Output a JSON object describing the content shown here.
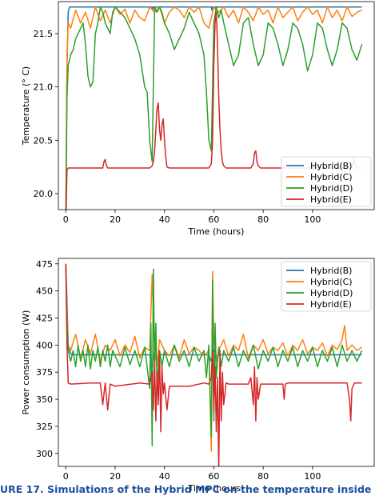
{
  "caption": "URE 17.  Simulations of the Hybrid MPC on the temperature inside",
  "chart_data": [
    {
      "type": "line",
      "title": "",
      "xlabel": "Time (hours)",
      "ylabel": "Temperature (° C)",
      "xlim": [
        -3,
        125
      ],
      "ylim": [
        19.85,
        21.8
      ],
      "xticks": [
        0,
        20,
        40,
        60,
        80,
        100
      ],
      "yticks": [
        20.0,
        20.5,
        21.0,
        21.5
      ],
      "ytick_labels": [
        "20.0",
        "20.5",
        "21.0",
        "21.5"
      ],
      "grid": false,
      "legend": "bottom-right",
      "series": [
        {
          "name": "Hybrid(B)",
          "color": "#1f77b4",
          "x": [
            0,
            0.5,
            1,
            1.5,
            35,
            35.2,
            35.5,
            35.8,
            59,
            59.2,
            59.5,
            59.8,
            120
          ],
          "y": [
            19.7,
            21.2,
            21.7,
            21.75,
            21.75,
            21.72,
            21.75,
            21.75,
            21.75,
            21.72,
            21.75,
            21.75,
            21.75
          ]
        },
        {
          "name": "Hybrid(C)",
          "color": "#ff7f0e",
          "x": [
            0,
            0.5,
            1,
            2,
            4,
            6,
            8,
            10,
            12,
            14,
            16,
            18,
            20,
            22,
            24,
            26,
            28,
            30,
            32,
            34,
            36,
            38,
            40,
            42,
            44,
            46,
            48,
            50,
            52,
            54,
            56,
            58,
            60,
            62,
            64,
            66,
            68,
            70,
            72,
            74,
            76,
            78,
            80,
            82,
            84,
            86,
            88,
            90,
            92,
            94,
            96,
            98,
            100,
            102,
            104,
            106,
            108,
            110,
            112,
            114,
            116,
            118,
            120
          ],
          "y": [
            19.7,
            21.3,
            21.6,
            21.55,
            21.72,
            21.6,
            21.7,
            21.55,
            21.75,
            21.62,
            21.72,
            21.6,
            21.75,
            21.68,
            21.73,
            21.6,
            21.72,
            21.65,
            21.62,
            21.75,
            21.7,
            21.75,
            21.6,
            21.7,
            21.75,
            21.72,
            21.65,
            21.75,
            21.7,
            21.75,
            21.6,
            21.55,
            21.75,
            21.7,
            21.75,
            21.65,
            21.72,
            21.6,
            21.75,
            21.7,
            21.62,
            21.75,
            21.68,
            21.72,
            21.6,
            21.75,
            21.65,
            21.7,
            21.75,
            21.62,
            21.7,
            21.75,
            21.68,
            21.72,
            21.6,
            21.75,
            21.65,
            21.72,
            21.62,
            21.75,
            21.66,
            21.7,
            21.72
          ]
        },
        {
          "name": "Hybrid(D)",
          "color": "#2ca02c",
          "x": [
            0,
            0.5,
            1,
            2,
            3,
            4,
            5,
            6,
            7,
            8,
            9,
            10,
            11,
            12,
            13,
            14,
            15,
            16,
            17,
            18,
            19,
            20,
            22,
            24,
            26,
            28,
            30,
            32,
            33,
            34,
            35,
            36,
            37,
            38,
            39,
            40,
            42,
            44,
            46,
            48,
            50,
            52,
            54,
            56,
            57,
            58,
            59,
            60,
            61,
            62,
            63,
            64,
            66,
            68,
            70,
            72,
            74,
            76,
            78,
            80,
            82,
            84,
            86,
            88,
            90,
            92,
            94,
            96,
            98,
            100,
            102,
            104,
            106,
            108,
            110,
            112,
            114,
            116,
            118,
            120
          ],
          "y": [
            19.7,
            20.9,
            21.2,
            21.3,
            21.35,
            21.45,
            21.5,
            21.55,
            21.6,
            21.4,
            21.1,
            21.0,
            21.05,
            21.5,
            21.6,
            21.75,
            21.7,
            21.6,
            21.55,
            21.5,
            21.7,
            21.75,
            21.7,
            21.65,
            21.55,
            21.45,
            21.3,
            21.0,
            20.95,
            20.5,
            20.3,
            21.75,
            21.7,
            21.75,
            21.7,
            21.6,
            21.5,
            21.35,
            21.45,
            21.55,
            21.7,
            21.6,
            21.5,
            21.3,
            20.95,
            20.5,
            20.4,
            21.6,
            21.75,
            21.65,
            21.72,
            21.6,
            21.4,
            21.2,
            21.3,
            21.6,
            21.65,
            21.4,
            21.2,
            21.3,
            21.6,
            21.55,
            21.4,
            21.2,
            21.35,
            21.6,
            21.55,
            21.4,
            21.15,
            21.3,
            21.6,
            21.55,
            21.35,
            21.2,
            21.35,
            21.6,
            21.55,
            21.35,
            21.25,
            21.4
          ]
        },
        {
          "name": "Hybrid(E)",
          "color": "#d62728",
          "x": [
            0,
            0.5,
            1,
            15,
            15.5,
            16,
            16.5,
            17,
            34,
            35,
            35.5,
            36,
            36.5,
            37,
            37.5,
            38,
            38.5,
            39,
            39.5,
            40,
            40.5,
            41,
            42,
            58,
            59,
            59.5,
            60,
            60.5,
            61,
            61.5,
            62,
            62.5,
            63,
            63.5,
            64,
            65,
            75,
            76,
            76.5,
            77,
            77.5,
            78,
            79,
            88,
            88.5,
            89,
            116,
            116.5,
            117,
            117.5,
            118,
            120
          ],
          "y": [
            19.7,
            20.22,
            20.24,
            20.24,
            20.3,
            20.32,
            20.26,
            20.24,
            20.24,
            20.26,
            20.3,
            20.4,
            20.6,
            20.8,
            20.85,
            20.6,
            20.5,
            20.65,
            20.7,
            20.5,
            20.35,
            20.25,
            20.24,
            20.24,
            20.28,
            20.5,
            21.2,
            21.6,
            21.7,
            21.4,
            20.9,
            20.6,
            20.4,
            20.3,
            20.26,
            20.24,
            20.24,
            20.28,
            20.38,
            20.4,
            20.3,
            20.26,
            20.24,
            20.24,
            20.25,
            20.24,
            20.24,
            20.33,
            20.3,
            20.26,
            20.24,
            20.24
          ]
        }
      ]
    },
    {
      "type": "line",
      "title": "",
      "xlabel": "Time (hours)",
      "ylabel": "Power consumption (W)",
      "xlim": [
        -3,
        125
      ],
      "ylim": [
        288,
        480
      ],
      "xticks": [
        0,
        20,
        40,
        60,
        80,
        100
      ],
      "yticks": [
        300,
        325,
        350,
        375,
        400,
        425,
        450,
        475
      ],
      "ytick_labels": [
        "300",
        "325",
        "350",
        "375",
        "400",
        "425",
        "450",
        "475"
      ],
      "grid": false,
      "legend": "top-right",
      "series": [
        {
          "name": "Hybrid(B)",
          "color": "#1f77b4",
          "x": [
            0,
            0.5,
            1,
            2,
            3,
            34,
            35,
            36,
            37,
            38,
            58,
            59,
            60,
            61,
            62,
            120
          ],
          "y": [
            475,
            440,
            400,
            392,
            391,
            391,
            380,
            395,
            388,
            391,
            391,
            385,
            396,
            389,
            391,
            391
          ]
        },
        {
          "name": "Hybrid(C)",
          "color": "#ff7f0e",
          "x": [
            0,
            0.5,
            1,
            2,
            4,
            6,
            8,
            10,
            12,
            14,
            16,
            18,
            20,
            22,
            24,
            26,
            28,
            30,
            32,
            34,
            35,
            36,
            37,
            38,
            40,
            42,
            44,
            46,
            48,
            50,
            52,
            54,
            56,
            58,
            59,
            59.5,
            60,
            60.5,
            61,
            62,
            64,
            66,
            68,
            70,
            72,
            74,
            76,
            78,
            80,
            82,
            84,
            86,
            88,
            90,
            92,
            94,
            96,
            98,
            100,
            102,
            104,
            106,
            108,
            110,
            112,
            113,
            114,
            116,
            118,
            120
          ],
          "y": [
            475,
            430,
            400,
            395,
            410,
            388,
            405,
            392,
            410,
            385,
            400,
            395,
            405,
            390,
            400,
            393,
            408,
            388,
            398,
            395,
            465,
            400,
            380,
            405,
            395,
            390,
            400,
            388,
            405,
            392,
            398,
            395,
            390,
            395,
            302,
            468,
            400,
            410,
            385,
            395,
            405,
            390,
            400,
            395,
            410,
            388,
            400,
            395,
            405,
            392,
            398,
            395,
            402,
            390,
            400,
            395,
            405,
            392,
            398,
            395,
            402,
            390,
            400,
            396,
            405,
            418,
            395,
            400,
            395,
            398
          ]
        },
        {
          "name": "Hybrid(D)",
          "color": "#2ca02c",
          "x": [
            0,
            0.5,
            1,
            2,
            3,
            4,
            5,
            6,
            7,
            8,
            9,
            10,
            11,
            12,
            13,
            14,
            15,
            16,
            17,
            18,
            19,
            20,
            22,
            24,
            26,
            28,
            30,
            32,
            34,
            34.5,
            35,
            35.5,
            36,
            36.5,
            37,
            38,
            39,
            40,
            42,
            44,
            46,
            48,
            50,
            52,
            54,
            56,
            57,
            58,
            59,
            59.5,
            60,
            60.5,
            61,
            62,
            63,
            64,
            66,
            68,
            70,
            72,
            74,
            76,
            78,
            80,
            82,
            84,
            86,
            88,
            90,
            92,
            94,
            96,
            98,
            100,
            102,
            104,
            106,
            108,
            110,
            112,
            114,
            116,
            118,
            120
          ],
          "y": [
            475,
            420,
            395,
            385,
            395,
            380,
            400,
            385,
            395,
            380,
            400,
            378,
            395,
            385,
            398,
            380,
            395,
            385,
            400,
            380,
            395,
            390,
            380,
            398,
            382,
            395,
            380,
            398,
            360,
            420,
            307,
            470,
            380,
            420,
            360,
            395,
            380,
            395,
            380,
            400,
            385,
            395,
            380,
            398,
            385,
            395,
            370,
            400,
            315,
            460,
            330,
            420,
            370,
            398,
            380,
            395,
            385,
            398,
            380,
            395,
            385,
            400,
            378,
            395,
            385,
            398,
            380,
            395,
            385,
            398,
            380,
            395,
            385,
            398,
            380,
            395,
            385,
            398,
            380,
            400,
            385,
            395,
            385,
            395
          ]
        },
        {
          "name": "Hybrid(E)",
          "color": "#d62728",
          "x": [
            0,
            0.5,
            1,
            2,
            10,
            14,
            15,
            16,
            17,
            18,
            20,
            30,
            34,
            35,
            35.5,
            36,
            36.5,
            37,
            37.5,
            38,
            38.5,
            39,
            39.5,
            40,
            41,
            42,
            50,
            56,
            58,
            59,
            59.5,
            60,
            60.5,
            61,
            61.5,
            62,
            62.5,
            63,
            63.5,
            64,
            65,
            66,
            74,
            75,
            76,
            76.5,
            77,
            77.5,
            78,
            79,
            88,
            88.5,
            89,
            90,
            100,
            114,
            115,
            115.5,
            116,
            117,
            120
          ],
          "y": [
            475,
            400,
            365,
            364,
            365,
            365,
            345,
            365,
            340,
            364,
            362,
            365,
            364,
            375,
            340,
            385,
            330,
            375,
            345,
            395,
            320,
            380,
            355,
            365,
            340,
            362,
            362,
            365,
            364,
            370,
            395,
            340,
            380,
            320,
            370,
            285,
            395,
            330,
            375,
            345,
            365,
            364,
            364,
            370,
            345,
            380,
            330,
            370,
            350,
            364,
            364,
            350,
            364,
            365,
            365,
            365,
            350,
            330,
            360,
            365,
            365
          ]
        }
      ]
    }
  ]
}
